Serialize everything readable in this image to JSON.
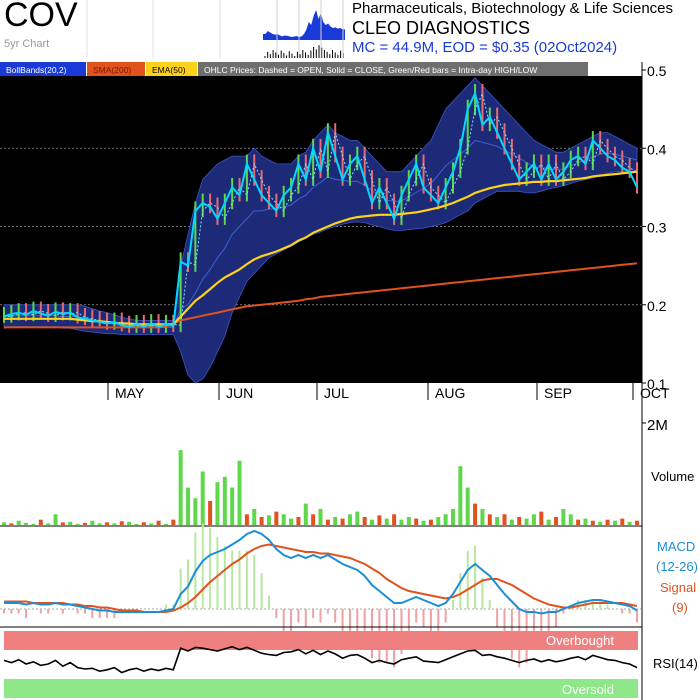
{
  "header": {
    "ticker": "COV",
    "period": "5yr Chart",
    "sector": "Pharmaceuticals, Biotechnology & Life Sciences",
    "company": "CLEO DIAGNOSTICS",
    "stats": "MC = 44.9M, EOD = $0.35 (02Oct2024)"
  },
  "legend": [
    {
      "label": "BollBands(20,2)",
      "bg": "#1a3ad8",
      "fg": "#ffffff"
    },
    {
      "label": "SMA(200)",
      "bg": "#e0521e",
      "fg": "#7a1a00"
    },
    {
      "label": "EMA(50)",
      "bg": "#ffd21a",
      "fg": "#000000"
    },
    {
      "label": "OHLC Prices: Dashed = OPEN, Solid = CLOSE, Green/Red bars = Intra-day HIGH/LOW",
      "bg": "#6e6e6e",
      "fg": "#ffffff"
    }
  ],
  "colors": {
    "price_bg": "#000000",
    "band_fill": "#1c2a78",
    "close": "#00d8ff",
    "sma200": "#e0521e",
    "ema50": "#ffd21a",
    "up": "#5ed84a",
    "down": "#e0521e",
    "macd": "#1a8fd8",
    "signal": "#e0521e",
    "overbought": "#ee8080",
    "oversold": "#8ee88a"
  },
  "chart_data": {
    "type": "line",
    "price_axis": {
      "ticks": [
        "0.5",
        "0.4",
        "0.3",
        "0.2",
        "0.1"
      ],
      "range": [
        0.1,
        0.5
      ]
    },
    "months": [
      "MAY",
      "JUN",
      "JUL",
      "AUG",
      "SEP",
      "OCT"
    ],
    "close": [
      0.185,
      0.188,
      0.19,
      0.187,
      0.192,
      0.189,
      0.186,
      0.191,
      0.188,
      0.19,
      0.184,
      0.182,
      0.18,
      0.178,
      0.176,
      0.178,
      0.174,
      0.172,
      0.175,
      0.172,
      0.176,
      0.172,
      0.175,
      0.173,
      0.255,
      0.25,
      0.32,
      0.33,
      0.325,
      0.31,
      0.33,
      0.35,
      0.34,
      0.38,
      0.36,
      0.34,
      0.33,
      0.32,
      0.34,
      0.35,
      0.38,
      0.36,
      0.4,
      0.37,
      0.42,
      0.39,
      0.36,
      0.38,
      0.39,
      0.36,
      0.33,
      0.35,
      0.33,
      0.31,
      0.34,
      0.36,
      0.38,
      0.35,
      0.34,
      0.33,
      0.35,
      0.37,
      0.4,
      0.45,
      0.47,
      0.43,
      0.44,
      0.42,
      0.4,
      0.38,
      0.36,
      0.37,
      0.38,
      0.36,
      0.38,
      0.36,
      0.37,
      0.385,
      0.39,
      0.38,
      0.41,
      0.4,
      0.39,
      0.385,
      0.375,
      0.37,
      0.35
    ],
    "sma200": [
      0.171,
      0.171,
      0.171,
      0.171,
      0.171,
      0.171,
      0.171,
      0.171,
      0.171,
      0.171,
      0.171,
      0.171,
      0.171,
      0.171,
      0.171,
      0.171,
      0.171,
      0.171,
      0.171,
      0.171,
      0.171,
      0.171,
      0.172,
      0.176,
      0.18,
      0.182,
      0.184,
      0.186,
      0.188,
      0.19,
      0.192,
      0.194,
      0.196,
      0.198,
      0.199,
      0.2,
      0.201,
      0.202,
      0.203,
      0.204,
      0.205,
      0.207,
      0.208,
      0.21,
      0.211,
      0.212,
      0.213,
      0.214,
      0.215,
      0.216,
      0.217,
      0.218,
      0.219,
      0.22,
      0.221,
      0.222,
      0.223,
      0.224,
      0.225,
      0.226,
      0.227,
      0.228,
      0.229,
      0.23,
      0.231,
      0.232,
      0.233,
      0.234,
      0.235,
      0.236,
      0.237,
      0.238,
      0.239,
      0.24,
      0.241,
      0.242,
      0.243,
      0.244,
      0.245,
      0.246,
      0.247,
      0.248,
      0.249,
      0.25,
      0.251,
      0.252,
      0.253
    ],
    "ema50": [
      0.182,
      0.182,
      0.182,
      0.182,
      0.182,
      0.182,
      0.182,
      0.182,
      0.182,
      0.182,
      0.181,
      0.18,
      0.179,
      0.179,
      0.178,
      0.177,
      0.176,
      0.176,
      0.175,
      0.175,
      0.175,
      0.175,
      0.175,
      0.175,
      0.185,
      0.195,
      0.205,
      0.212,
      0.22,
      0.228,
      0.235,
      0.24,
      0.245,
      0.252,
      0.258,
      0.262,
      0.265,
      0.268,
      0.272,
      0.276,
      0.282,
      0.286,
      0.292,
      0.296,
      0.3,
      0.304,
      0.307,
      0.31,
      0.312,
      0.313,
      0.314,
      0.315,
      0.315,
      0.315,
      0.316,
      0.317,
      0.318,
      0.32,
      0.322,
      0.324,
      0.327,
      0.33,
      0.334,
      0.338,
      0.343,
      0.346,
      0.349,
      0.351,
      0.353,
      0.354,
      0.355,
      0.356,
      0.357,
      0.357,
      0.358,
      0.358,
      0.359,
      0.36,
      0.361,
      0.362,
      0.364,
      0.365,
      0.366,
      0.367,
      0.368,
      0.369,
      0.37
    ],
    "boll_upper": [
      0.2,
      0.2,
      0.2,
      0.2,
      0.2,
      0.2,
      0.2,
      0.2,
      0.2,
      0.2,
      0.2,
      0.198,
      0.195,
      0.192,
      0.19,
      0.187,
      0.184,
      0.182,
      0.18,
      0.18,
      0.18,
      0.18,
      0.18,
      0.18,
      0.25,
      0.29,
      0.33,
      0.36,
      0.37,
      0.38,
      0.385,
      0.39,
      0.39,
      0.39,
      0.4,
      0.39,
      0.385,
      0.38,
      0.38,
      0.38,
      0.39,
      0.395,
      0.41,
      0.42,
      0.43,
      0.42,
      0.415,
      0.41,
      0.41,
      0.4,
      0.39,
      0.38,
      0.37,
      0.37,
      0.37,
      0.38,
      0.39,
      0.4,
      0.41,
      0.43,
      0.45,
      0.46,
      0.47,
      0.48,
      0.49,
      0.48,
      0.47,
      0.46,
      0.45,
      0.44,
      0.43,
      0.42,
      0.41,
      0.405,
      0.4,
      0.395,
      0.395,
      0.4,
      0.405,
      0.41,
      0.415,
      0.42,
      0.42,
      0.415,
      0.41,
      0.405,
      0.4
    ],
    "boll_lower": [
      0.17,
      0.172,
      0.172,
      0.172,
      0.172,
      0.172,
      0.172,
      0.172,
      0.17,
      0.17,
      0.168,
      0.166,
      0.165,
      0.164,
      0.163,
      0.163,
      0.162,
      0.162,
      0.162,
      0.162,
      0.162,
      0.162,
      0.162,
      0.162,
      0.14,
      0.11,
      0.1,
      0.105,
      0.12,
      0.14,
      0.16,
      0.19,
      0.21,
      0.23,
      0.24,
      0.25,
      0.26,
      0.265,
      0.27,
      0.275,
      0.28,
      0.285,
      0.29,
      0.293,
      0.297,
      0.3,
      0.303,
      0.305,
      0.306,
      0.305,
      0.302,
      0.3,
      0.297,
      0.295,
      0.295,
      0.296,
      0.297,
      0.298,
      0.3,
      0.302,
      0.305,
      0.31,
      0.315,
      0.32,
      0.33,
      0.335,
      0.34,
      0.345,
      0.345,
      0.345,
      0.345,
      0.343,
      0.343,
      0.345,
      0.348,
      0.35,
      0.352,
      0.355,
      0.358,
      0.36,
      0.362,
      0.365,
      0.368,
      0.37,
      0.37,
      0.37,
      0.37
    ],
    "volume": [
      0.05,
      0.03,
      0.08,
      0.04,
      0.02,
      0.1,
      0.03,
      0.2,
      0.05,
      0.06,
      0.02,
      0.04,
      0.08,
      0.03,
      0.05,
      0.03,
      0.07,
      0.06,
      0.02,
      0.05,
      0.03,
      0.08,
      0.02,
      0.1,
      1.4,
      0.7,
      0.5,
      1.0,
      0.45,
      0.8,
      0.9,
      0.7,
      1.2,
      0.2,
      0.3,
      0.15,
      0.18,
      0.25,
      0.2,
      0.12,
      0.15,
      0.4,
      0.2,
      0.3,
      0.1,
      0.15,
      0.12,
      0.2,
      0.25,
      0.15,
      0.1,
      0.18,
      0.12,
      0.2,
      0.1,
      0.15,
      0.12,
      0.08,
      0.1,
      0.15,
      0.2,
      0.3,
      1.1,
      0.7,
      0.4,
      0.3,
      0.2,
      0.15,
      0.2,
      0.1,
      0.15,
      0.12,
      0.2,
      0.25,
      0.1,
      0.15,
      0.3,
      0.2,
      0.1,
      0.12,
      0.08,
      0.06,
      0.1,
      0.08,
      0.12,
      0.06,
      0.08
    ],
    "volume_up": [
      true,
      false,
      true,
      true,
      true,
      false,
      true,
      true,
      false,
      true,
      true,
      false,
      true,
      true,
      false,
      true,
      false,
      true,
      true,
      false,
      true,
      false,
      true,
      false,
      true,
      true,
      true,
      true,
      false,
      true,
      true,
      true,
      true,
      false,
      true,
      false,
      true,
      false,
      true,
      true,
      false,
      true,
      false,
      true,
      false,
      true,
      false,
      true,
      true,
      false,
      true,
      false,
      true,
      false,
      true,
      true,
      false,
      true,
      false,
      true,
      true,
      true,
      true,
      true,
      false,
      true,
      false,
      true,
      false,
      true,
      false,
      true,
      true,
      false,
      true,
      false,
      true,
      true,
      false,
      true,
      false,
      true,
      false,
      true,
      false,
      true,
      false
    ],
    "volume_axis": {
      "label": "Volume",
      "max_label": "2M",
      "max": 2.0
    },
    "macd": [
      0.004,
      0.004,
      0.004,
      0.003,
      0.004,
      0.003,
      0.003,
      0.004,
      0.003,
      0.003,
      0.002,
      0.001,
      0.0,
      -0.001,
      -0.001,
      -0.002,
      -0.002,
      -0.002,
      -0.002,
      -0.002,
      -0.002,
      -0.002,
      -0.001,
      0.0,
      0.01,
      0.015,
      0.025,
      0.032,
      0.036,
      0.038,
      0.04,
      0.043,
      0.046,
      0.05,
      0.052,
      0.05,
      0.046,
      0.04,
      0.036,
      0.034,
      0.036,
      0.034,
      0.036,
      0.034,
      0.036,
      0.033,
      0.03,
      0.028,
      0.026,
      0.022,
      0.016,
      0.012,
      0.008,
      0.004,
      0.004,
      0.006,
      0.008,
      0.006,
      0.004,
      0.002,
      0.004,
      0.01,
      0.018,
      0.026,
      0.03,
      0.026,
      0.022,
      0.016,
      0.01,
      0.005,
      0.0,
      -0.002,
      -0.002,
      -0.003,
      -0.002,
      -0.002,
      0.0,
      0.002,
      0.004,
      0.005,
      0.006,
      0.006,
      0.005,
      0.004,
      0.003,
      0.002,
      -0.001
    ],
    "signal": [
      0.005,
      0.005,
      0.005,
      0.005,
      0.004,
      0.004,
      0.004,
      0.004,
      0.004,
      0.003,
      0.003,
      0.002,
      0.002,
      0.001,
      0.001,
      0.0,
      -0.001,
      -0.001,
      -0.001,
      -0.002,
      -0.002,
      -0.002,
      -0.002,
      -0.001,
      0.001,
      0.004,
      0.008,
      0.013,
      0.018,
      0.022,
      0.026,
      0.03,
      0.033,
      0.037,
      0.04,
      0.042,
      0.043,
      0.042,
      0.041,
      0.04,
      0.039,
      0.038,
      0.038,
      0.037,
      0.037,
      0.036,
      0.035,
      0.034,
      0.032,
      0.03,
      0.027,
      0.024,
      0.02,
      0.017,
      0.014,
      0.012,
      0.011,
      0.01,
      0.009,
      0.008,
      0.007,
      0.008,
      0.01,
      0.013,
      0.016,
      0.019,
      0.02,
      0.02,
      0.018,
      0.016,
      0.013,
      0.01,
      0.007,
      0.005,
      0.003,
      0.002,
      0.001,
      0.001,
      0.002,
      0.003,
      0.004,
      0.004,
      0.004,
      0.004,
      0.004,
      0.003,
      0.002
    ],
    "macd_labels": [
      "MACD",
      "(12-26)",
      "Signal",
      "(9)"
    ],
    "rsi": [
      55,
      52,
      56,
      50,
      53,
      48,
      50,
      55,
      47,
      52,
      45,
      43,
      44,
      40,
      42,
      45,
      38,
      42,
      44,
      40,
      43,
      41,
      44,
      42,
      72,
      68,
      73,
      72,
      70,
      68,
      71,
      74,
      70,
      73,
      69,
      65,
      63,
      62,
      66,
      67,
      70,
      64,
      69,
      63,
      68,
      64,
      58,
      62,
      63,
      58,
      52,
      55,
      52,
      50,
      56,
      58,
      60,
      54,
      53,
      52,
      56,
      60,
      64,
      68,
      69,
      62,
      63,
      60,
      58,
      55,
      52,
      55,
      57,
      53,
      56,
      53,
      55,
      58,
      60,
      56,
      62,
      59,
      56,
      55,
      52,
      50,
      45
    ],
    "rsi_labels": {
      "name": "RSI(14)",
      "overbought": "Overbought",
      "oversold": "Oversold"
    }
  }
}
